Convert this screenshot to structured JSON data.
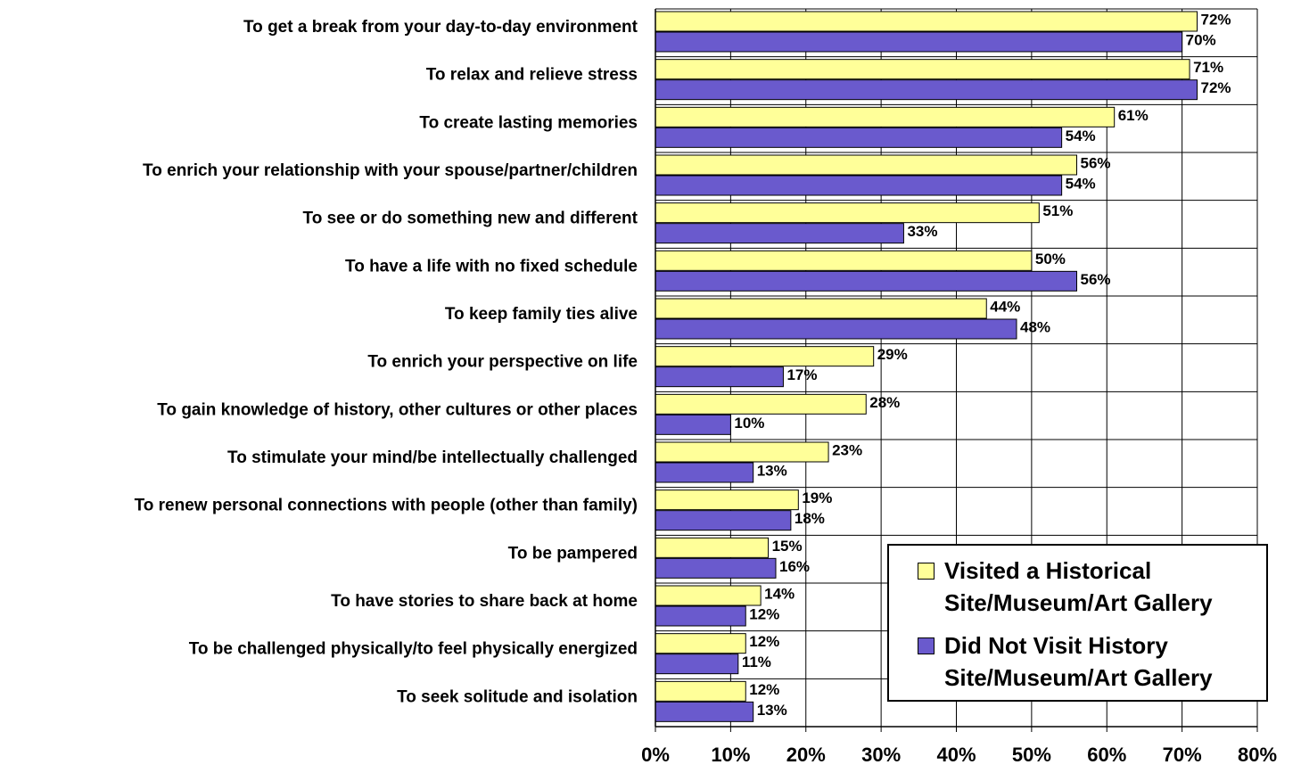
{
  "chart_data": {
    "type": "hbar",
    "categories": [
      "To get a break from your day-to-day environment",
      "To relax and relieve stress",
      "To create lasting memories",
      "To enrich your relationship with your spouse/partner/children",
      "To see or do something new and different",
      "To have a life with no fixed schedule",
      "To keep family ties alive",
      "To enrich your perspective on life",
      "To gain knowledge of history, other cultures or other places",
      "To stimulate your mind/be intellectually challenged",
      "To renew personal connections with people (other than family)",
      "To be pampered",
      "To have stories to share back at home",
      "To be challenged physically/to feel physically energized",
      "To seek solitude and isolation"
    ],
    "series": [
      {
        "name": "Visited a Historical Site/Museum/Art Gallery",
        "color": "#ffff99",
        "values": [
          72,
          71,
          61,
          56,
          51,
          50,
          44,
          29,
          28,
          23,
          19,
          15,
          14,
          12,
          12
        ],
        "value_labels": [
          "72%",
          "71%",
          "61%",
          "56%",
          "51%",
          "50%",
          "44%",
          "29%",
          "28%",
          "23%",
          "19%",
          "15%",
          "14%",
          "12%",
          "12%"
        ]
      },
      {
        "name": "Did Not Visit History Site/Museum/Art Gallery",
        "color": "#6a5acd",
        "values": [
          70,
          72,
          54,
          54,
          33,
          56,
          48,
          17,
          10,
          13,
          18,
          16,
          12,
          11,
          13
        ],
        "value_labels": [
          "70%",
          "72%",
          "54%",
          "54%",
          "33%",
          "56%",
          "48%",
          "17%",
          "10%",
          "13%",
          "18%",
          "16%",
          "12%",
          "11%",
          "13%"
        ]
      }
    ],
    "xlim": [
      0,
      80
    ],
    "xticks": [
      {
        "value": 0,
        "label": "0%"
      },
      {
        "value": 10,
        "label": "10%"
      },
      {
        "value": 20,
        "label": "20%"
      },
      {
        "value": 30,
        "label": "30%"
      },
      {
        "value": 40,
        "label": "40%"
      },
      {
        "value": 50,
        "label": "50%"
      },
      {
        "value": 60,
        "label": "60%"
      },
      {
        "value": 70,
        "label": "70%"
      },
      {
        "value": 80,
        "label": "80%"
      }
    ],
    "grid": true,
    "legend": "lower right"
  }
}
